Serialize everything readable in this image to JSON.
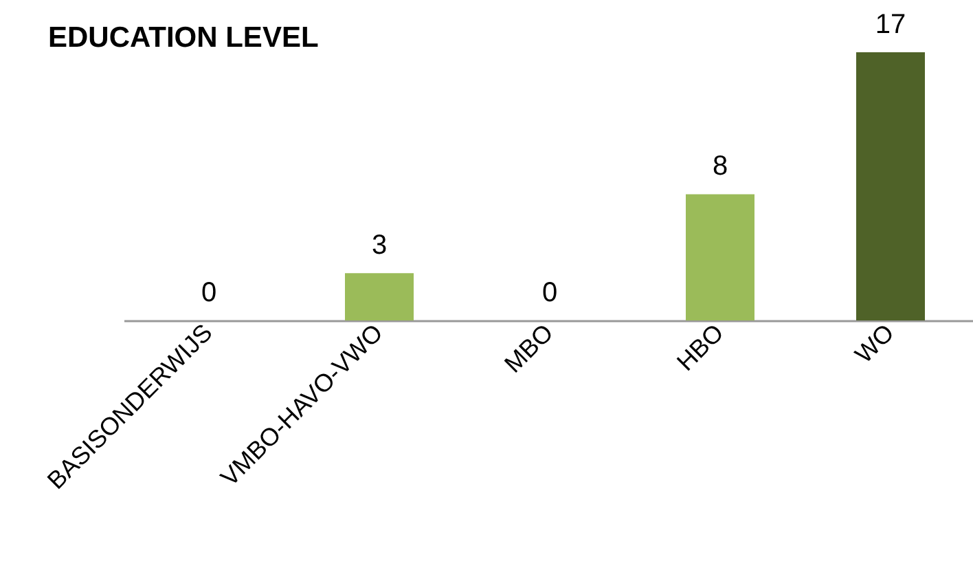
{
  "chart_data": {
    "type": "bar",
    "title": "EDUCATION LEVEL",
    "categories": [
      "BASISONDERWIJS",
      "VMBO-HAVO-VWO",
      "MBO",
      "HBO",
      "WO"
    ],
    "values": [
      0,
      3,
      0,
      8,
      17
    ],
    "colors": [
      "#9bbb59",
      "#9bbb59",
      "#9bbb59",
      "#9bbb59",
      "#4f6228"
    ],
    "data_labels": true,
    "tick_labels": "x"
  }
}
